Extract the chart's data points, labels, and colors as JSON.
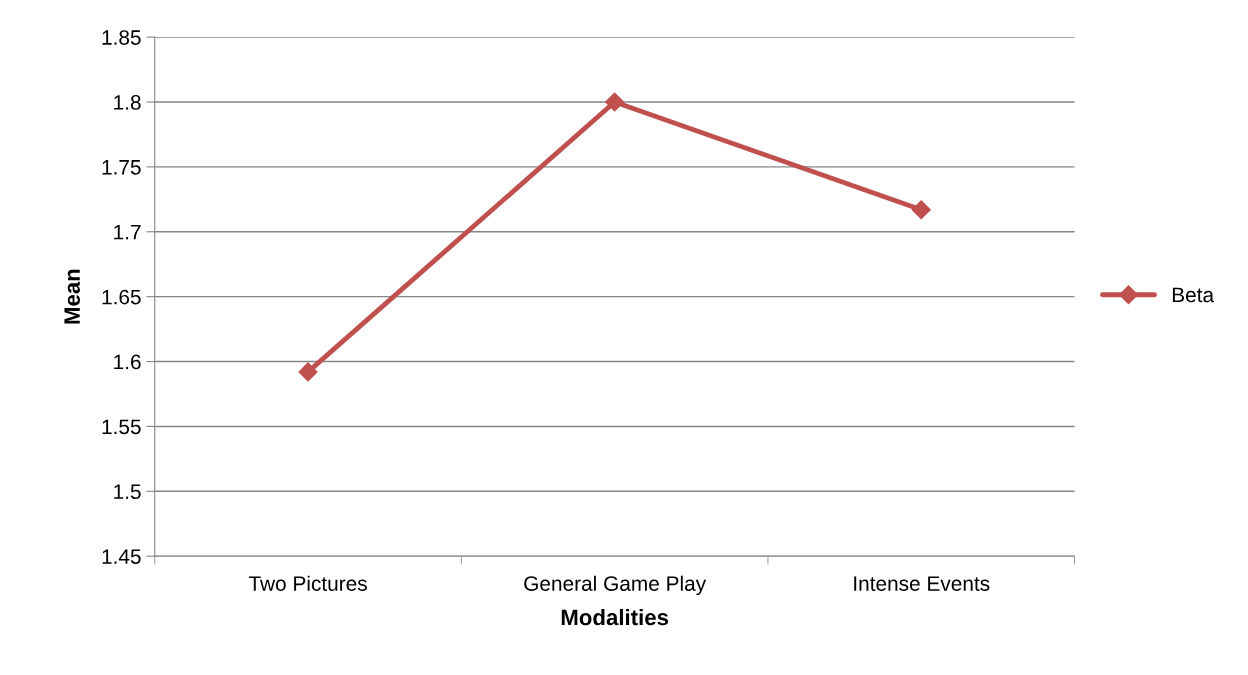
{
  "chart_data": {
    "type": "line",
    "xlabel": "Modalities",
    "ylabel": "Mean",
    "categories": [
      "Two Pictures",
      "General Game Play",
      "Intense Events"
    ],
    "series": [
      {
        "name": "Beta",
        "color": "#c0504d",
        "values": [
          1.592,
          1.8,
          1.717
        ]
      }
    ],
    "ylim": [
      1.45,
      1.85
    ],
    "yticks": [
      1.45,
      1.5,
      1.55,
      1.6,
      1.65,
      1.7,
      1.75,
      1.8,
      1.85
    ],
    "grid": "y",
    "legend": "right",
    "marker": "diamond",
    "line_style": "solid"
  }
}
